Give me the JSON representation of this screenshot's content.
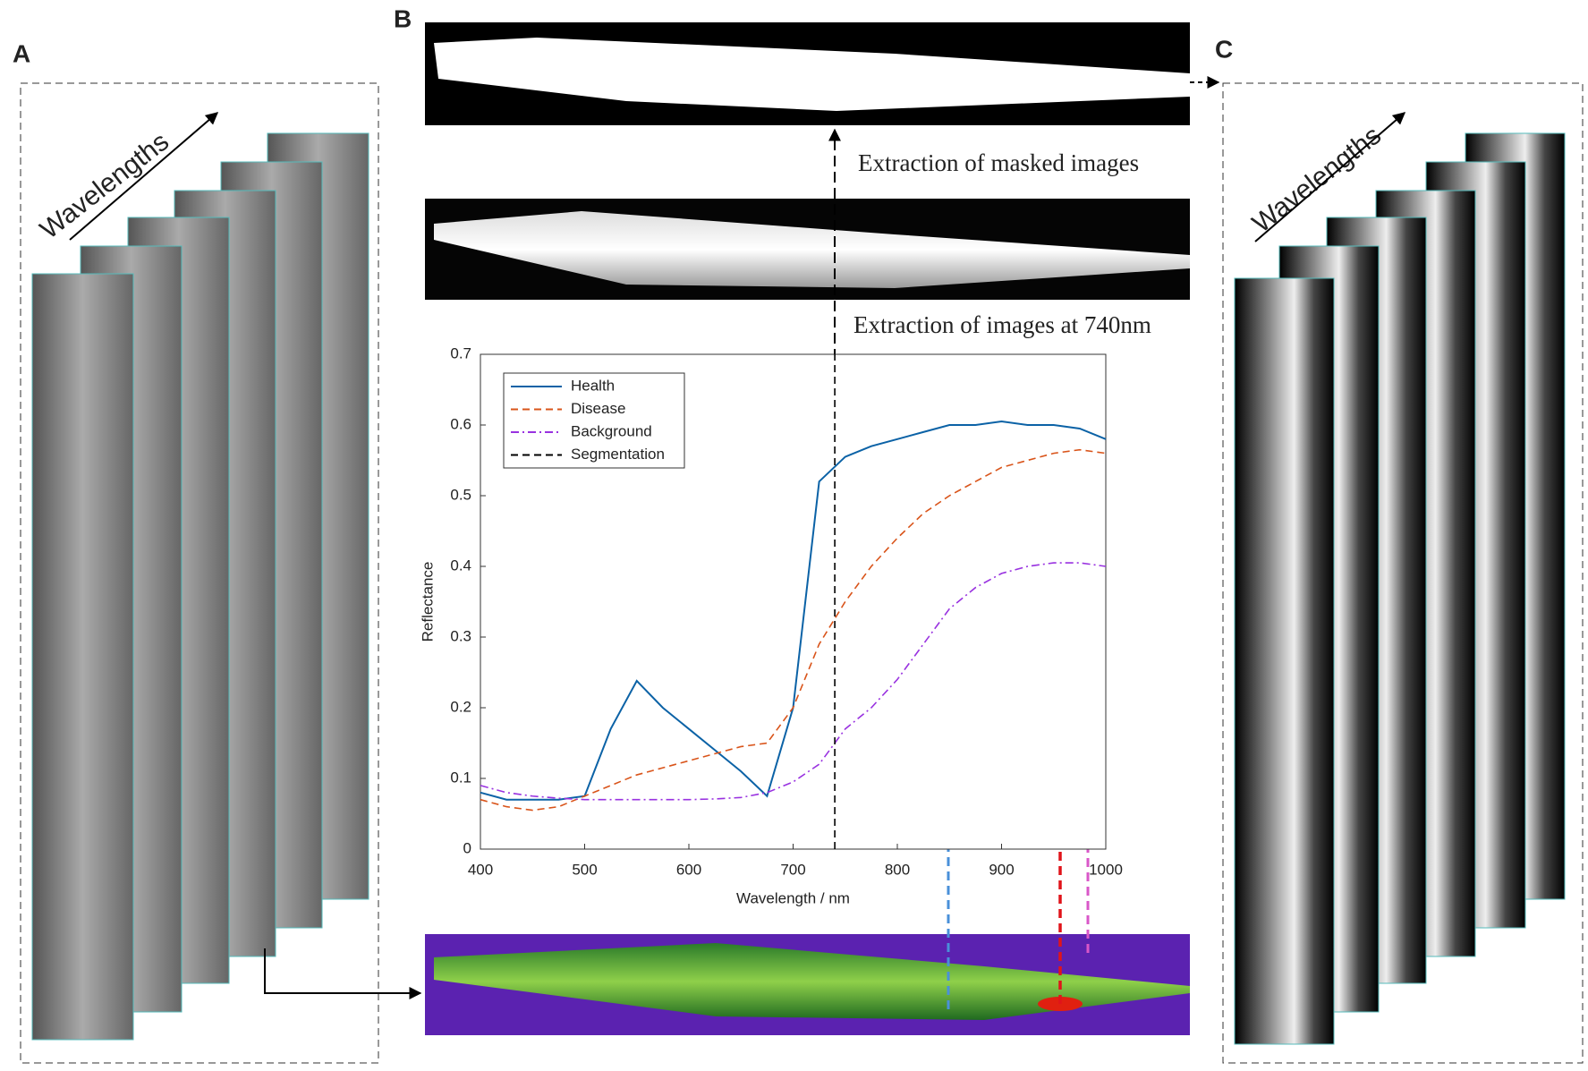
{
  "panels": {
    "a": "A",
    "b": "B",
    "c": "C"
  },
  "stack_labels": {
    "left": "Wavelengths",
    "right": "Wavelengths"
  },
  "annotations": {
    "masked": "Extraction of masked images",
    "extract": "Extraction of images at 740nm"
  },
  "chart_data": {
    "type": "line",
    "xlabel": "Wavelength / nm",
    "ylabel": "Reflectance",
    "x": [
      400,
      425,
      450,
      475,
      500,
      525,
      550,
      575,
      600,
      625,
      650,
      675,
      700,
      725,
      750,
      775,
      800,
      825,
      850,
      875,
      900,
      925,
      950,
      975,
      1000
    ],
    "xlim": [
      400,
      1000
    ],
    "xticks": [
      400,
      500,
      600,
      700,
      800,
      900,
      1000
    ],
    "ylim": [
      0,
      0.7
    ],
    "yticks": [
      0,
      0.1,
      0.2,
      0.3,
      0.4,
      0.5,
      0.6,
      0.7
    ],
    "grid": false,
    "legend": "upper left",
    "series": [
      {
        "name": "Health",
        "color": "#0b62a6",
        "style": "solid",
        "values": [
          0.08,
          0.07,
          0.07,
          0.07,
          0.075,
          0.17,
          0.238,
          0.2,
          0.17,
          0.14,
          0.11,
          0.075,
          0.2,
          0.52,
          0.555,
          0.57,
          0.58,
          0.59,
          0.6,
          0.6,
          0.605,
          0.6,
          0.6,
          0.595,
          0.58
        ]
      },
      {
        "name": "Disease",
        "color": "#d9541a",
        "style": "dashed",
        "values": [
          0.07,
          0.06,
          0.055,
          0.06,
          0.075,
          0.09,
          0.105,
          0.115,
          0.125,
          0.135,
          0.145,
          0.15,
          0.2,
          0.29,
          0.35,
          0.4,
          0.44,
          0.475,
          0.5,
          0.52,
          0.54,
          0.55,
          0.56,
          0.565,
          0.56
        ]
      },
      {
        "name": "Background",
        "color": "#9932e0",
        "style": "dashdot",
        "values": [
          0.09,
          0.08,
          0.075,
          0.072,
          0.07,
          0.07,
          0.07,
          0.07,
          0.07,
          0.071,
          0.073,
          0.08,
          0.095,
          0.12,
          0.17,
          0.2,
          0.24,
          0.29,
          0.34,
          0.37,
          0.39,
          0.4,
          0.405,
          0.405,
          0.4
        ]
      },
      {
        "name": "Segmentation",
        "color": "#000000",
        "style": "dashed",
        "x": [
          740,
          740
        ],
        "values": [
          0,
          0.7
        ]
      }
    ]
  }
}
